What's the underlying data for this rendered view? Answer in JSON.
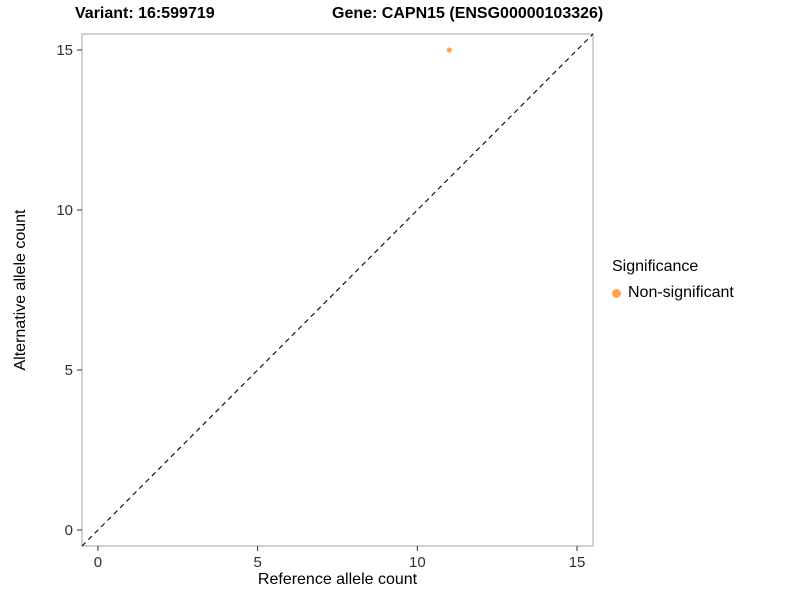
{
  "chart_data": {
    "type": "scatter",
    "title_left": "Variant: 16:599719",
    "title_right": "Gene: CAPN15 (ENSG00000103326)",
    "xlabel": "Reference allele count",
    "ylabel": "Alternative allele count",
    "xlim": [
      -0.5,
      15.5
    ],
    "ylim": [
      -0.5,
      15.5
    ],
    "xticks": [
      0,
      5,
      10,
      15
    ],
    "yticks": [
      0,
      5,
      10,
      15
    ],
    "grid": false,
    "points": [
      {
        "x": 11,
        "y": 15,
        "series": "Non-significant"
      }
    ],
    "point_color": "#FFA64D",
    "point_radius": 2.6,
    "identity_line": {
      "style": "dashed",
      "from": [
        -0.5,
        -0.5
      ],
      "to": [
        15.5,
        15.5
      ],
      "color": "#000000"
    },
    "legend": {
      "title": "Significance",
      "position": "right",
      "entries": [
        {
          "label": "Non-significant",
          "color": "#FFA64D"
        }
      ]
    },
    "panel_border_color": "#a6a6a6",
    "tick_mark_color": "#333333",
    "tick_label_color": "#303030"
  }
}
